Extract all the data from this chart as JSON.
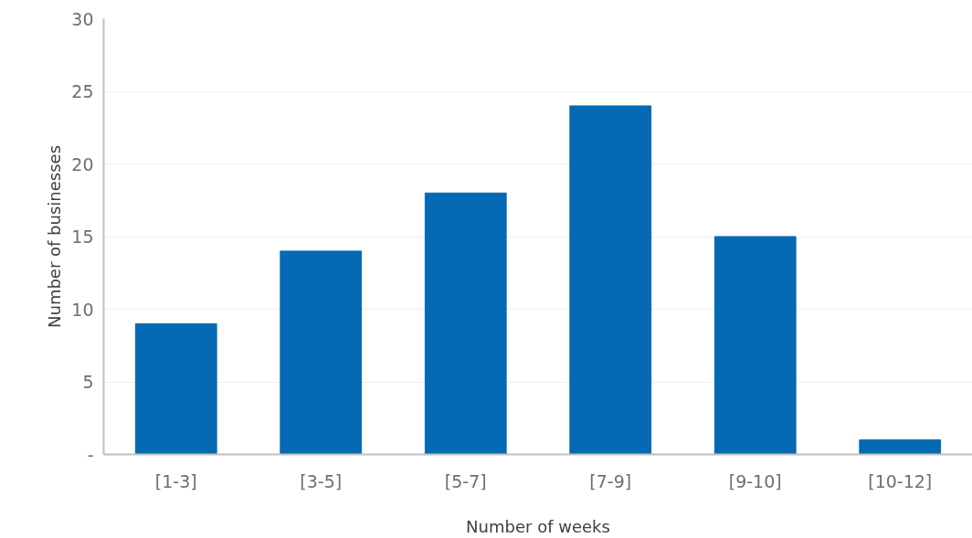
{
  "chart_data": {
    "type": "bar",
    "xlabel": "Number of weeks",
    "ylabel": "Number of businesses",
    "categories": [
      "[1-3]",
      "[3-5]",
      "[5-7]",
      "[7-9]",
      "[9-10]",
      "[10-12]"
    ],
    "values": [
      9,
      14,
      18,
      24,
      15,
      1
    ],
    "color": "#056ab3",
    "ylim": [
      0,
      30
    ],
    "yticks": [
      {
        "value": 0,
        "label": "-"
      },
      5,
      10,
      15,
      20,
      25,
      30
    ],
    "grid": "y"
  }
}
